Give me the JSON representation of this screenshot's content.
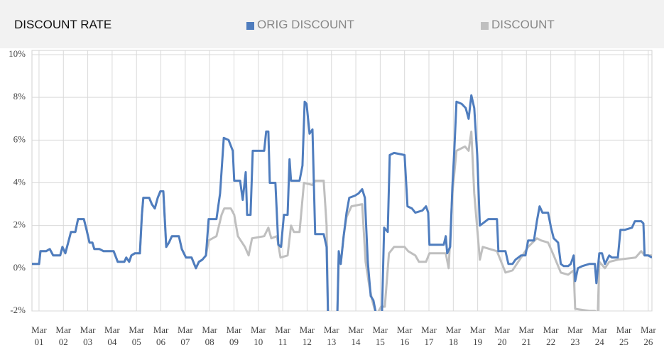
{
  "chart_data": {
    "type": "line",
    "title": "DISCOUNT RATE",
    "xlim": [
      0.71,
      26.15
    ],
    "ylim": [
      -2,
      10
    ],
    "yticks": [
      {
        "value": -2,
        "label": "-2%"
      },
      {
        "value": 0,
        "label": "0%"
      },
      {
        "value": 2,
        "label": "2%"
      },
      {
        "value": 4,
        "label": "4%"
      },
      {
        "value": 6,
        "label": "6%"
      },
      {
        "value": 8,
        "label": "8%"
      },
      {
        "value": 10,
        "label": "10%"
      }
    ],
    "xticks": [
      {
        "value": 1,
        "label": "Mar 01"
      },
      {
        "value": 2,
        "label": "Mar 02"
      },
      {
        "value": 3,
        "label": "Mar 03"
      },
      {
        "value": 4,
        "label": "Mar 04"
      },
      {
        "value": 5,
        "label": "Mar 05"
      },
      {
        "value": 6,
        "label": "Mar 06"
      },
      {
        "value": 7,
        "label": "Mar 07"
      },
      {
        "value": 8,
        "label": "Mar 08"
      },
      {
        "value": 9,
        "label": "Mar 09"
      },
      {
        "value": 10,
        "label": "Mar 10"
      },
      {
        "value": 11,
        "label": "Mar 11"
      },
      {
        "value": 12,
        "label": "Mar 12"
      },
      {
        "value": 13,
        "label": "Mar 13"
      },
      {
        "value": 14,
        "label": "Mar 14"
      },
      {
        "value": 15,
        "label": "Mar 15"
      },
      {
        "value": 16,
        "label": "Mar 16"
      },
      {
        "value": 17,
        "label": "Mar 17"
      },
      {
        "value": 18,
        "label": "Mar 18"
      },
      {
        "value": 19,
        "label": "Mar 19"
      },
      {
        "value": 20,
        "label": "Mar 20"
      },
      {
        "value": 21,
        "label": "Mar 21"
      },
      {
        "value": 22,
        "label": "Mar 22"
      },
      {
        "value": 23,
        "label": "Mar 23"
      },
      {
        "value": 24,
        "label": "Mar 24"
      },
      {
        "value": 25,
        "label": "Mar 25"
      },
      {
        "value": 26,
        "label": "Mar 26"
      }
    ],
    "grid": true,
    "series": [
      {
        "name": "ORIG DISCOUNT",
        "color": "#4f7dbe",
        "x": [
          0.71,
          1.0,
          1.06,
          1.29,
          1.44,
          1.58,
          1.87,
          1.96,
          2.08,
          2.22,
          2.31,
          2.49,
          2.6,
          2.84,
          2.95,
          3.07,
          3.19,
          3.27,
          3.48,
          3.65,
          4.06,
          4.23,
          4.5,
          4.58,
          4.7,
          4.79,
          4.93,
          5.14,
          5.22,
          5.28,
          5.52,
          5.63,
          5.75,
          5.87,
          5.98,
          6.1,
          6.22,
          6.33,
          6.45,
          6.74,
          6.86,
          7.03,
          7.26,
          7.44,
          7.56,
          7.7,
          7.85,
          7.96,
          8.28,
          8.43,
          8.58,
          8.78,
          8.95,
          9.01,
          9.25,
          9.36,
          9.48,
          9.54,
          9.68,
          9.77,
          10.24,
          10.32,
          10.41,
          10.47,
          10.7,
          10.82,
          10.93,
          11.05,
          11.2,
          11.28,
          11.34,
          11.69,
          11.81,
          11.9,
          11.98,
          12.1,
          12.22,
          12.33,
          12.68,
          12.8,
          12.86,
          12.97,
          13.24,
          13.3,
          13.38,
          13.5,
          13.62,
          13.73,
          13.97,
          14.11,
          14.26,
          14.37,
          14.49,
          14.61,
          14.72,
          14.84,
          15.07,
          15.16,
          15.31,
          15.39,
          15.57,
          16.0,
          16.12,
          16.3,
          16.44,
          16.73,
          16.88,
          16.97,
          17.02,
          17.61,
          17.69,
          17.75,
          17.87,
          17.96,
          18.04,
          18.13,
          18.34,
          18.51,
          18.63,
          18.74,
          18.86,
          18.98,
          19.09,
          19.21,
          19.44,
          19.79,
          19.85,
          20.14,
          20.26,
          20.43,
          20.55,
          20.78,
          20.96,
          21.07,
          21.31,
          21.43,
          21.54,
          21.66,
          21.89,
          22.01,
          22.12,
          22.3,
          22.41,
          22.53,
          22.71,
          22.82,
          22.94,
          23.0,
          23.11,
          23.29,
          23.58,
          23.81,
          23.87,
          23.99,
          24.1,
          24.22,
          24.4,
          24.51,
          24.75,
          24.86,
          25.04,
          25.33,
          25.45,
          25.71,
          25.8,
          25.85,
          26.0,
          26.15
        ],
        "values": [
          0.2,
          0.2,
          0.8,
          0.8,
          0.9,
          0.6,
          0.6,
          1.0,
          0.7,
          1.3,
          1.7,
          1.7,
          2.3,
          2.3,
          1.8,
          1.2,
          1.2,
          0.9,
          0.9,
          0.8,
          0.8,
          0.3,
          0.3,
          0.5,
          0.3,
          0.6,
          0.7,
          0.7,
          2.5,
          3.3,
          3.3,
          3.0,
          2.8,
          3.3,
          3.6,
          3.6,
          1.0,
          1.2,
          1.5,
          1.5,
          0.9,
          0.5,
          0.5,
          0.0,
          0.3,
          0.4,
          0.6,
          2.3,
          2.3,
          3.5,
          6.1,
          6.0,
          5.5,
          4.1,
          4.1,
          3.2,
          4.5,
          2.5,
          2.5,
          5.5,
          5.5,
          6.4,
          6.4,
          4.0,
          4.0,
          1.1,
          1.0,
          2.5,
          2.5,
          5.1,
          4.1,
          4.1,
          4.8,
          7.8,
          7.7,
          6.3,
          6.5,
          1.6,
          1.6,
          1.0,
          -2.2,
          -2.3,
          -2.2,
          0.8,
          0.2,
          1.5,
          2.6,
          3.3,
          3.4,
          3.5,
          3.7,
          3.3,
          0.3,
          -1.3,
          -1.5,
          -2.2,
          -2.2,
          1.9,
          1.7,
          5.3,
          5.4,
          5.3,
          2.9,
          2.8,
          2.6,
          2.7,
          2.9,
          2.6,
          1.1,
          1.1,
          1.5,
          0.7,
          1.0,
          3.8,
          5.5,
          7.8,
          7.7,
          7.5,
          7.0,
          8.1,
          7.5,
          5.3,
          2.0,
          2.1,
          2.3,
          2.3,
          0.8,
          0.8,
          0.2,
          0.2,
          0.4,
          0.6,
          0.6,
          1.3,
          1.3,
          2.2,
          2.9,
          2.6,
          2.6,
          1.9,
          1.4,
          1.2,
          0.2,
          0.1,
          0.1,
          0.2,
          0.6,
          -0.6,
          0.0,
          0.1,
          0.2,
          0.2,
          -0.7,
          0.7,
          0.7,
          0.2,
          0.6,
          0.5,
          0.5,
          1.8,
          1.8,
          1.9,
          2.2,
          2.2,
          2.1,
          0.6,
          0.6,
          0.5
        ]
      },
      {
        "name": "DISCOUNT",
        "color": "#bfbfbf",
        "x": [
          0.71,
          1.0,
          1.06,
          1.29,
          1.44,
          1.58,
          1.87,
          1.96,
          2.08,
          2.22,
          2.31,
          2.49,
          2.6,
          2.84,
          2.95,
          3.07,
          3.19,
          3.27,
          3.48,
          3.65,
          4.06,
          4.23,
          4.5,
          4.58,
          4.7,
          4.79,
          4.93,
          5.14,
          5.22,
          5.28,
          5.52,
          5.63,
          5.75,
          5.87,
          5.98,
          6.1,
          6.22,
          6.33,
          6.45,
          6.74,
          6.86,
          7.03,
          7.26,
          7.44,
          7.56,
          7.7,
          7.85,
          7.96,
          8.28,
          8.49,
          8.6,
          8.87,
          9.01,
          9.16,
          9.45,
          9.6,
          9.74,
          10.24,
          10.41,
          10.53,
          10.76,
          10.91,
          11.2,
          11.34,
          11.46,
          11.69,
          11.87,
          12.22,
          12.33,
          12.68,
          12.8,
          12.86,
          13.24,
          13.3,
          13.38,
          13.5,
          13.62,
          13.82,
          14.26,
          14.4,
          14.55,
          14.67,
          14.84,
          15.04,
          15.19,
          15.36,
          15.57,
          16.0,
          16.15,
          16.44,
          16.59,
          16.88,
          17.02,
          17.69,
          17.81,
          17.96,
          18.13,
          18.48,
          18.63,
          18.74,
          18.86,
          19.09,
          19.21,
          19.5,
          19.79,
          20.14,
          20.43,
          21.07,
          21.43,
          21.6,
          21.89,
          22.12,
          22.41,
          22.71,
          22.94,
          23.0,
          23.58,
          23.81,
          23.93,
          23.99,
          24.22,
          24.4,
          24.75,
          25.48,
          25.71,
          25.85,
          26.15
        ],
        "values": [
          0.2,
          0.2,
          0.8,
          0.8,
          0.9,
          0.6,
          0.6,
          1.0,
          0.7,
          1.3,
          1.7,
          1.7,
          2.3,
          2.3,
          1.8,
          1.2,
          1.2,
          0.9,
          0.9,
          0.8,
          0.8,
          0.3,
          0.3,
          0.5,
          0.3,
          0.6,
          0.7,
          0.7,
          2.5,
          3.3,
          3.3,
          3.0,
          2.8,
          3.3,
          3.6,
          3.6,
          1.0,
          1.2,
          1.5,
          1.5,
          0.9,
          0.5,
          0.5,
          0.0,
          0.3,
          0.4,
          0.6,
          1.3,
          1.5,
          2.5,
          2.8,
          2.8,
          2.5,
          1.5,
          1.0,
          0.6,
          1.4,
          1.5,
          1.9,
          1.4,
          1.5,
          0.5,
          0.6,
          2.0,
          1.7,
          1.7,
          4.0,
          3.9,
          4.1,
          4.1,
          2.0,
          -2.2,
          -2.2,
          0.5,
          0.2,
          1.5,
          2.4,
          2.9,
          3.0,
          0.3,
          -0.8,
          -1.5,
          -2.2,
          -1.8,
          -1.8,
          0.7,
          1.0,
          1.0,
          0.8,
          0.6,
          0.3,
          0.3,
          0.7,
          0.7,
          0.0,
          3.5,
          5.5,
          5.7,
          5.5,
          6.4,
          3.5,
          0.4,
          1.0,
          0.9,
          0.8,
          -0.2,
          -0.1,
          1.0,
          1.4,
          1.3,
          1.2,
          0.6,
          -0.2,
          -0.3,
          -0.1,
          -1.9,
          -2.0,
          -2.0,
          -2.1,
          0.3,
          0.0,
          0.3,
          0.4,
          0.5,
          0.8,
          0.6,
          0.6
        ]
      }
    ]
  }
}
